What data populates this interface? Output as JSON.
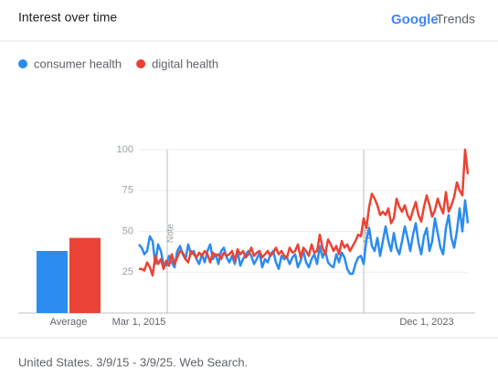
{
  "header": {
    "title": "Interest over time",
    "brand": "Google",
    "brand_suffix": "Trends"
  },
  "chart_data": {
    "type": "line",
    "categories": [
      "Mar 1, 2015",
      null,
      null,
      null,
      null,
      null,
      null,
      null,
      null,
      null,
      null,
      null,
      null,
      null,
      null,
      null,
      null,
      null,
      null,
      null,
      null,
      null,
      null,
      null,
      null,
      null,
      null,
      null,
      null,
      null,
      null,
      null,
      null,
      null,
      null,
      null,
      null,
      null,
      null,
      null,
      null,
      null,
      null,
      null,
      null,
      null,
      null,
      null,
      null,
      null,
      null,
      null,
      null,
      null,
      null,
      null,
      null,
      null,
      null,
      null,
      null,
      null,
      null,
      null,
      null,
      null,
      null,
      null,
      null,
      null,
      null,
      null,
      null,
      null,
      null,
      null,
      null,
      null,
      null,
      null,
      null,
      null,
      null,
      null,
      null,
      null,
      null,
      null,
      null,
      null,
      null,
      null,
      null,
      null,
      null,
      null,
      null,
      null,
      null,
      null,
      null,
      null,
      null,
      null,
      null,
      "Dec 1, 2023",
      null,
      null,
      null,
      null,
      null,
      null,
      null,
      null,
      null,
      null,
      null,
      null,
      null,
      null,
      null
    ],
    "series": [
      {
        "name": "consumer health",
        "color": "#2b8cf0",
        "average": 38,
        "values": [
          42,
          40,
          36,
          38,
          47,
          44,
          30,
          42,
          38,
          30,
          29,
          35,
          31,
          28,
          38,
          41,
          36,
          33,
          42,
          36,
          38,
          33,
          30,
          36,
          31,
          38,
          42,
          33,
          36,
          30,
          38,
          40,
          34,
          31,
          35,
          30,
          38,
          29,
          33,
          36,
          38,
          35,
          30,
          33,
          37,
          28,
          33,
          31,
          36,
          38,
          31,
          27,
          35,
          33,
          34,
          30,
          34,
          36,
          28,
          32,
          38,
          31,
          28,
          33,
          36,
          30,
          41,
          34,
          38,
          31,
          29,
          28,
          36,
          31,
          37,
          34,
          27,
          24,
          24,
          30,
          34,
          35,
          30,
          45,
          52,
          41,
          38,
          46,
          35,
          44,
          53,
          44,
          38,
          49,
          40,
          36,
          44,
          53,
          46,
          38,
          48,
          55,
          43,
          36,
          47,
          52,
          38,
          44,
          58,
          49,
          40,
          36,
          52,
          60,
          46,
          40,
          50,
          64,
          50,
          69,
          55
        ]
      },
      {
        "name": "digital health",
        "color": "#ea4335",
        "average": 46,
        "values": [
          27,
          27,
          26,
          31,
          28,
          23,
          35,
          30,
          33,
          27,
          32,
          29,
          36,
          30,
          34,
          38,
          37,
          33,
          31,
          38,
          36,
          34,
          37,
          35,
          38,
          36,
          31,
          37,
          35,
          36,
          33,
          37,
          35,
          36,
          38,
          32,
          39,
          36,
          38,
          34,
          36,
          40,
          35,
          37,
          38,
          34,
          36,
          38,
          35,
          37,
          40,
          36,
          38,
          35,
          34,
          40,
          37,
          38,
          42,
          34,
          40,
          38,
          35,
          42,
          37,
          38,
          48,
          40,
          36,
          45,
          42,
          38,
          41,
          36,
          44,
          40,
          42,
          38,
          41,
          44,
          48,
          47,
          58,
          52,
          65,
          73,
          70,
          66,
          60,
          62,
          60,
          64,
          55,
          58,
          70,
          65,
          62,
          66,
          60,
          57,
          63,
          68,
          60,
          56,
          65,
          72,
          66,
          59,
          63,
          70,
          65,
          61,
          74,
          62,
          66,
          71,
          80,
          75,
          72,
          100,
          85
        ]
      }
    ],
    "average_label": "Average",
    "annotations": [
      "Note",
      "Note"
    ],
    "ylim": [
      0,
      100
    ],
    "yticks": [
      25,
      50,
      75,
      100
    ],
    "grid": true
  },
  "footer": "United States. 3/9/15 - 3/9/25. Web Search."
}
